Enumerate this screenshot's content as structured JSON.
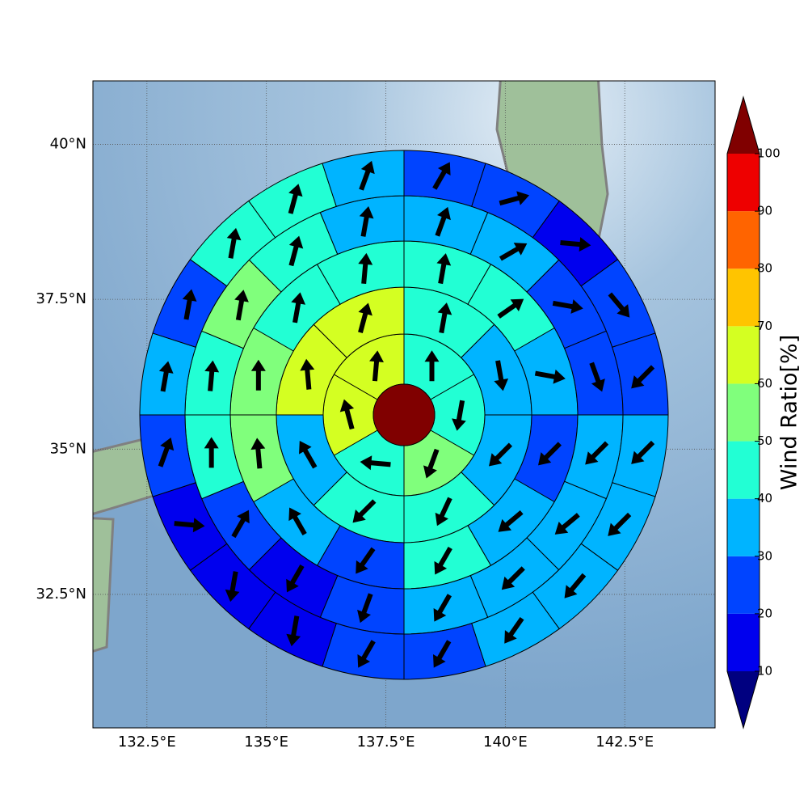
{
  "chart_data": {
    "type": "polar-grid-map",
    "xlim": [
      131.37,
      144.39
    ],
    "ylim": [
      30.14,
      41.0
    ],
    "xticks": [
      {
        "value": 132.5,
        "label": "132.5°E"
      },
      {
        "value": 135,
        "label": "135°E"
      },
      {
        "value": 137.5,
        "label": "137.5°E"
      },
      {
        "value": 140,
        "label": "140°E"
      },
      {
        "value": 142.5,
        "label": "142.5°E"
      }
    ],
    "yticks": [
      {
        "value": 32.5,
        "label": "32.5°N"
      },
      {
        "value": 35,
        "label": "35°N"
      },
      {
        "value": 37.5,
        "label": "37.5°N"
      },
      {
        "value": 40,
        "label": "40°N"
      }
    ],
    "grid": true,
    "center_value": 100,
    "rings": [
      {
        "values": [
          45,
          45,
          55,
          45,
          65,
          65
        ],
        "directions": [
          0,
          190,
          200,
          275,
          345,
          5
        ]
      },
      {
        "values": [
          45,
          35,
          35,
          45,
          45,
          35,
          65,
          65
        ],
        "directions": [
          10,
          170,
          225,
          205,
          225,
          330,
          355,
          15
        ]
      },
      {
        "values": [
          45,
          45,
          35,
          25,
          35,
          45,
          25,
          35,
          55,
          55,
          45,
          45
        ],
        "directions": [
          10,
          55,
          100,
          225,
          230,
          210,
          215,
          330,
          355,
          0,
          10,
          5
        ]
      },
      {
        "values": [
          35,
          35,
          25,
          25,
          35,
          35,
          35,
          35,
          25,
          15,
          25,
          45,
          45,
          55,
          45,
          35
        ],
        "directions": [
          20,
          60,
          100,
          160,
          225,
          230,
          225,
          210,
          200,
          210,
          30,
          0,
          5,
          10,
          15,
          10
        ]
      },
      {
        "values": [
          25,
          25,
          15,
          25,
          25,
          35,
          35,
          35,
          35,
          25,
          25,
          15,
          15,
          15,
          25,
          35,
          25,
          45,
          45,
          35
        ],
        "directions": [
          30,
          75,
          95,
          140,
          225,
          225,
          225,
          220,
          215,
          210,
          210,
          190,
          190,
          95,
          20,
          10,
          10,
          10,
          15,
          20
        ]
      }
    ],
    "colorbar": {
      "label": "Wind Ratio[%]",
      "ticks": [
        10,
        20,
        30,
        40,
        50,
        60,
        70,
        80,
        90,
        100
      ],
      "colors": [
        "#0000ee",
        "#0044ff",
        "#00b4ff",
        "#22ffd4",
        "#80ff7c",
        "#d4ff22",
        "#ffc400",
        "#ff6400",
        "#ee0000"
      ],
      "under_color": "#000080",
      "over_color": "#800000"
    }
  }
}
